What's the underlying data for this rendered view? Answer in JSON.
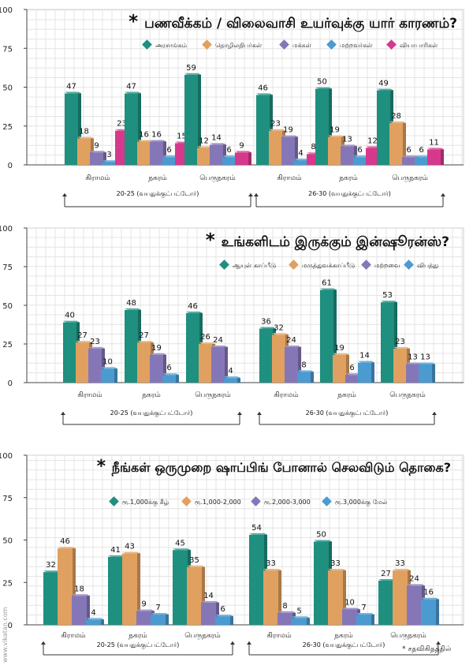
{
  "watermark": "www.vikatan.com",
  "credit": "* சதவிகிதத்தில்",
  "colors": {
    "teal": "#1f8f7f",
    "orange": "#e0a060",
    "purple": "#8577b7",
    "blue": "#4b9bd0",
    "pink": "#d6398c"
  },
  "chart_data": [
    {
      "type": "bar",
      "title": "பணவீக்கம் / விலைவாசி உயர்வுக்கு யார் காரணம்?",
      "title_mark": "*",
      "ylim": [
        0,
        100
      ],
      "yticks": [
        "0",
        "25",
        "50",
        "75",
        "100"
      ],
      "grid": true,
      "legend_position": "top-right",
      "categories": [
        "கிராமம்",
        "நகரம்",
        "பெருநகரம்",
        "கிராமம்",
        "நகரம்",
        "பெருநகரம்"
      ],
      "groups": [
        {
          "label": "20-25 (வயதுக்குட்பட்டோர்)",
          "span": [
            0,
            2
          ]
        },
        {
          "label": "26-30 (வயதுக்குட்பட்டோர்)",
          "span": [
            3,
            5
          ]
        }
      ],
      "series": [
        {
          "name": "அரசாங்கம்",
          "color": "#1f8f7f",
          "values": [
            47,
            47,
            59,
            46,
            50,
            49
          ]
        },
        {
          "name": "தொழிலதிபர்கள்",
          "color": "#e0a060",
          "values": [
            18,
            16,
            12,
            23,
            19,
            28
          ]
        },
        {
          "name": "மக்கள்",
          "color": "#8577b7",
          "values": [
            9,
            16,
            14,
            19,
            13,
            6
          ]
        },
        {
          "name": "மற்றவர்கள்",
          "color": "#4b9bd0",
          "values": [
            3,
            6,
            6,
            4,
            6,
            6
          ]
        },
        {
          "name": "வியாபாரிகள்",
          "color": "#d6398c",
          "values": [
            23,
            15,
            9,
            8,
            12,
            11
          ]
        }
      ]
    },
    {
      "type": "bar",
      "title": "உங்களிடம் இருக்கும் இன்ஷூரன்ஸ்?",
      "title_mark": "*",
      "ylim": [
        0,
        100
      ],
      "yticks": [
        "0",
        "25",
        "50",
        "75",
        "100"
      ],
      "grid": true,
      "legend_position": "top-right",
      "categories": [
        "கிராமம்",
        "நகரம்",
        "பெருநகரம்",
        "கிராமம்",
        "நகரம்",
        "பெருநகரம்"
      ],
      "groups": [
        {
          "label": "20-25 (வயதுக்குட்பட்டோர்)",
          "span": [
            0,
            2
          ]
        },
        {
          "label": "26-30 (வயதுக்குட்பட்டோர்)",
          "span": [
            3,
            5
          ]
        }
      ],
      "series": [
        {
          "name": "ஆயுள் காப்பீடு",
          "color": "#1f8f7f",
          "values": [
            40,
            48,
            46,
            36,
            61,
            53
          ]
        },
        {
          "name": "மருத்துவக்காப்பீடு",
          "color": "#e0a060",
          "values": [
            27,
            27,
            26,
            32,
            19,
            23
          ]
        },
        {
          "name": "மற்றவை",
          "color": "#8577b7",
          "values": [
            23,
            19,
            24,
            24,
            6,
            13
          ]
        },
        {
          "name": "விபத்து",
          "color": "#4b9bd0",
          "values": [
            10,
            6,
            4,
            8,
            14,
            13
          ]
        }
      ]
    },
    {
      "type": "bar",
      "title": "நீங்கள் ஒருமுறை ஷாப்பிங் போனால் செலவிடும் தொகை?",
      "title_mark": "*",
      "ylim": [
        0,
        100
      ],
      "yticks": [
        "0",
        "25",
        "50",
        "75",
        "100"
      ],
      "grid": true,
      "legend_position": "top",
      "categories": [
        "கிராமம்",
        "நகரம்",
        "பெருநகரம்",
        "கிராமம்",
        "நகரம்",
        "பெருநகரம்"
      ],
      "groups": [
        {
          "label": "20-25 (வயதுக்குட்பட்டோர்)",
          "span": [
            0,
            2
          ]
        },
        {
          "label": "26-30 (வயதுக்குட்பட்டோர்)",
          "span": [
            3,
            5
          ]
        }
      ],
      "series": [
        {
          "name": "ரூ.1,000க்கு கீழ்",
          "color": "#1f8f7f",
          "values": [
            32,
            41,
            45,
            54,
            50,
            27
          ]
        },
        {
          "name": "ரூ.1,000-2,000",
          "color": "#e0a060",
          "values": [
            46,
            43,
            35,
            33,
            33,
            33
          ]
        },
        {
          "name": "ரூ.2,000-3,000",
          "color": "#8577b7",
          "values": [
            18,
            9,
            14,
            8,
            10,
            24
          ]
        },
        {
          "name": "ரூ.3,000க்கு மேல்",
          "color": "#4b9bd0",
          "values": [
            4,
            7,
            6,
            5,
            7,
            16
          ]
        }
      ]
    }
  ]
}
